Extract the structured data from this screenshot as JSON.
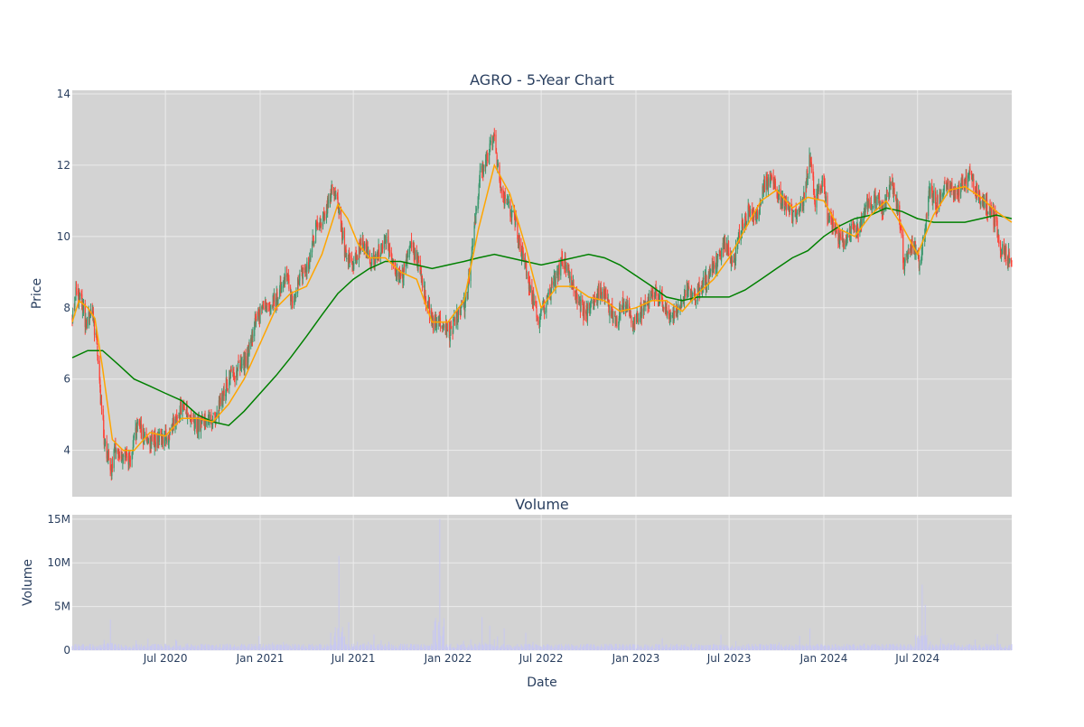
{
  "colors": {
    "plot_bg": "#d3d3d3",
    "grid": "#ebebeb",
    "up": "#3d9970",
    "down": "#ff4136",
    "ma_fast": "#ffa500",
    "ma_slow": "#008000",
    "volume": "#c8c8f0",
    "text": "#2a3f5f"
  },
  "chart_data": [
    {
      "type": "candlestick",
      "title": "AGRO - 5-Year Chart",
      "ylabel": "Price",
      "ylim": [
        2.7,
        14.1
      ],
      "yticks": [
        4,
        6,
        8,
        10,
        12,
        14
      ],
      "xlim": [
        "2020-01-02",
        "2024-12-31"
      ],
      "grid": true,
      "legend": "none",
      "series": [
        {
          "type": "candlestick",
          "colors": {
            "up": "#3d9970",
            "down": "#ff4136"
          }
        },
        {
          "type": "line",
          "color": "#ffa500"
        },
        {
          "type": "line",
          "color": "#008000"
        }
      ],
      "close_path": [
        [
          "2020-01-02",
          7.7
        ],
        [
          "2020-01-09",
          8.4
        ],
        [
          "2020-01-20",
          8.2
        ],
        [
          "2020-01-28",
          7.5
        ],
        [
          "2020-02-07",
          8.1
        ],
        [
          "2020-02-20",
          6.8
        ],
        [
          "2020-02-26",
          5.4
        ],
        [
          "2020-03-05",
          4.2
        ],
        [
          "2020-03-18",
          3.5
        ],
        [
          "2020-03-26",
          4.1
        ],
        [
          "2020-04-10",
          3.8
        ],
        [
          "2020-04-22",
          3.8
        ],
        [
          "2020-05-08",
          4.7
        ],
        [
          "2020-05-20",
          4.4
        ],
        [
          "2020-06-05",
          4.2
        ],
        [
          "2020-06-20",
          4.4
        ],
        [
          "2020-07-05",
          4.3
        ],
        [
          "2020-07-20",
          4.9
        ],
        [
          "2020-08-05",
          5.3
        ],
        [
          "2020-08-20",
          4.8
        ],
        [
          "2020-09-05",
          4.7
        ],
        [
          "2020-09-20",
          4.9
        ],
        [
          "2020-10-05",
          4.8
        ],
        [
          "2020-10-20",
          5.6
        ],
        [
          "2020-11-05",
          6.1
        ],
        [
          "2020-11-20",
          6.3
        ],
        [
          "2020-12-05",
          6.4
        ],
        [
          "2020-12-20",
          7.5
        ],
        [
          "2021-01-05",
          8.0
        ],
        [
          "2021-01-20",
          8.1
        ],
        [
          "2021-02-05",
          8.3
        ],
        [
          "2021-02-20",
          9.1
        ],
        [
          "2021-03-05",
          8.1
        ],
        [
          "2021-03-20",
          9.0
        ],
        [
          "2021-04-05",
          9.1
        ],
        [
          "2021-04-20",
          10.4
        ],
        [
          "2021-05-05",
          10.5
        ],
        [
          "2021-05-20",
          11.3
        ],
        [
          "2021-06-01",
          11.0
        ],
        [
          "2021-06-15",
          9.5
        ],
        [
          "2021-07-01",
          9.3
        ],
        [
          "2021-07-20",
          9.8
        ],
        [
          "2021-08-05",
          9.2
        ],
        [
          "2021-08-20",
          9.6
        ],
        [
          "2021-09-05",
          9.9
        ],
        [
          "2021-09-20",
          9.0
        ],
        [
          "2021-10-05",
          8.9
        ],
        [
          "2021-10-20",
          9.7
        ],
        [
          "2021-11-05",
          9.2
        ],
        [
          "2021-11-20",
          8.2
        ],
        [
          "2021-12-05",
          7.5
        ],
        [
          "2021-12-20",
          7.6
        ],
        [
          "2022-01-05",
          7.3
        ],
        [
          "2022-01-20",
          7.8
        ],
        [
          "2022-02-05",
          8.2
        ],
        [
          "2022-02-20",
          10.0
        ],
        [
          "2022-03-05",
          11.8
        ],
        [
          "2022-03-20",
          12.2
        ],
        [
          "2022-04-01",
          13.0
        ],
        [
          "2022-04-10",
          11.5
        ],
        [
          "2022-04-25",
          10.9
        ],
        [
          "2022-05-10",
          10.5
        ],
        [
          "2022-05-25",
          9.5
        ],
        [
          "2022-06-10",
          8.5
        ],
        [
          "2022-06-25",
          7.7
        ],
        [
          "2022-07-10",
          8.1
        ],
        [
          "2022-07-25",
          8.7
        ],
        [
          "2022-08-10",
          9.3
        ],
        [
          "2022-08-25",
          9.0
        ],
        [
          "2022-09-10",
          8.2
        ],
        [
          "2022-09-25",
          7.8
        ],
        [
          "2022-10-10",
          8.3
        ],
        [
          "2022-10-25",
          8.5
        ],
        [
          "2022-11-10",
          8.0
        ],
        [
          "2022-11-25",
          7.6
        ],
        [
          "2022-12-10",
          8.2
        ],
        [
          "2022-12-25",
          7.5
        ],
        [
          "2023-01-10",
          7.9
        ],
        [
          "2023-01-25",
          8.2
        ],
        [
          "2023-02-10",
          8.4
        ],
        [
          "2023-02-25",
          8.0
        ],
        [
          "2023-03-10",
          7.6
        ],
        [
          "2023-03-25",
          7.9
        ],
        [
          "2023-04-10",
          8.6
        ],
        [
          "2023-04-25",
          8.3
        ],
        [
          "2023-05-10",
          8.6
        ],
        [
          "2023-05-25",
          8.9
        ],
        [
          "2023-06-10",
          9.4
        ],
        [
          "2023-06-25",
          9.8
        ],
        [
          "2023-07-10",
          9.3
        ],
        [
          "2023-07-25",
          10.2
        ],
        [
          "2023-08-10",
          10.8
        ],
        [
          "2023-08-25",
          10.6
        ],
        [
          "2023-09-10",
          11.6
        ],
        [
          "2023-09-25",
          11.5
        ],
        [
          "2023-10-10",
          11.1
        ],
        [
          "2023-10-25",
          10.8
        ],
        [
          "2023-11-10",
          10.5
        ],
        [
          "2023-11-25",
          11.2
        ],
        [
          "2023-12-05",
          12.3
        ],
        [
          "2023-12-15",
          11.0
        ],
        [
          "2023-12-30",
          11.6
        ],
        [
          "2024-01-10",
          10.5
        ],
        [
          "2024-01-25",
          10.1
        ],
        [
          "2024-02-10",
          9.8
        ],
        [
          "2024-02-25",
          10.2
        ],
        [
          "2024-03-10",
          10.1
        ],
        [
          "2024-03-25",
          10.9
        ],
        [
          "2024-04-10",
          11.0
        ],
        [
          "2024-04-25",
          10.8
        ],
        [
          "2024-05-10",
          11.5
        ],
        [
          "2024-05-25",
          10.7
        ],
        [
          "2024-06-05",
          9.2
        ],
        [
          "2024-06-20",
          9.8
        ],
        [
          "2024-07-05",
          9.3
        ],
        [
          "2024-07-15",
          10.2
        ],
        [
          "2024-07-25",
          11.3
        ],
        [
          "2024-08-10",
          10.9
        ],
        [
          "2024-08-25",
          11.5
        ],
        [
          "2024-09-10",
          11.2
        ],
        [
          "2024-09-25",
          11.4
        ],
        [
          "2024-10-10",
          11.7
        ],
        [
          "2024-10-25",
          11.2
        ],
        [
          "2024-11-10",
          10.9
        ],
        [
          "2024-11-25",
          10.6
        ],
        [
          "2024-12-10",
          9.7
        ],
        [
          "2024-12-31",
          9.3
        ]
      ],
      "ma_fast": [
        [
          "2020-01-02",
          7.6
        ],
        [
          "2020-01-15",
          8.2
        ],
        [
          "2020-02-01",
          8.0
        ],
        [
          "2020-02-15",
          7.7
        ],
        [
          "2020-03-01",
          6.3
        ],
        [
          "2020-03-20",
          4.3
        ],
        [
          "2020-04-10",
          4.0
        ],
        [
          "2020-05-01",
          4.0
        ],
        [
          "2020-06-01",
          4.5
        ],
        [
          "2020-07-01",
          4.4
        ],
        [
          "2020-08-01",
          4.9
        ],
        [
          "2020-09-01",
          4.9
        ],
        [
          "2020-10-01",
          4.8
        ],
        [
          "2020-11-01",
          5.3
        ],
        [
          "2020-12-01",
          6.0
        ],
        [
          "2021-01-01",
          7.0
        ],
        [
          "2021-02-01",
          8.0
        ],
        [
          "2021-03-01",
          8.4
        ],
        [
          "2021-04-01",
          8.6
        ],
        [
          "2021-05-01",
          9.5
        ],
        [
          "2021-06-01",
          10.9
        ],
        [
          "2021-06-20",
          10.5
        ],
        [
          "2021-07-10",
          9.8
        ],
        [
          "2021-08-01",
          9.4
        ],
        [
          "2021-09-01",
          9.4
        ],
        [
          "2021-10-01",
          9.0
        ],
        [
          "2021-11-01",
          8.8
        ],
        [
          "2021-12-01",
          7.6
        ],
        [
          "2022-01-01",
          7.6
        ],
        [
          "2022-02-01",
          8.2
        ],
        [
          "2022-03-01",
          10.2
        ],
        [
          "2022-04-01",
          12.0
        ],
        [
          "2022-05-01",
          11.2
        ],
        [
          "2022-06-01",
          9.7
        ],
        [
          "2022-07-01",
          8.0
        ],
        [
          "2022-08-01",
          8.6
        ],
        [
          "2022-09-01",
          8.6
        ],
        [
          "2022-10-01",
          8.3
        ],
        [
          "2022-11-01",
          8.2
        ],
        [
          "2022-12-01",
          7.9
        ],
        [
          "2023-01-01",
          8.0
        ],
        [
          "2023-02-01",
          8.2
        ],
        [
          "2023-03-01",
          8.2
        ],
        [
          "2023-04-01",
          7.9
        ],
        [
          "2023-05-01",
          8.4
        ],
        [
          "2023-06-01",
          8.8
        ],
        [
          "2023-07-01",
          9.4
        ],
        [
          "2023-08-01",
          10.2
        ],
        [
          "2023-09-01",
          11.0
        ],
        [
          "2023-10-01",
          11.3
        ],
        [
          "2023-11-01",
          10.8
        ],
        [
          "2023-12-01",
          11.1
        ],
        [
          "2024-01-01",
          11.0
        ],
        [
          "2024-02-01",
          10.2
        ],
        [
          "2024-03-01",
          10.0
        ],
        [
          "2024-04-01",
          10.6
        ],
        [
          "2024-05-01",
          11.0
        ],
        [
          "2024-06-01",
          10.3
        ],
        [
          "2024-07-01",
          9.5
        ],
        [
          "2024-08-01",
          10.6
        ],
        [
          "2024-09-01",
          11.3
        ],
        [
          "2024-10-01",
          11.4
        ],
        [
          "2024-11-01",
          11.1
        ],
        [
          "2024-12-01",
          10.7
        ],
        [
          "2024-12-31",
          10.4
        ]
      ],
      "ma_slow": [
        [
          "2020-01-02",
          6.6
        ],
        [
          "2020-02-01",
          6.8
        ],
        [
          "2020-03-01",
          6.8
        ],
        [
          "2020-04-01",
          6.4
        ],
        [
          "2020-05-01",
          6.0
        ],
        [
          "2020-06-01",
          5.8
        ],
        [
          "2020-07-01",
          5.6
        ],
        [
          "2020-08-01",
          5.4
        ],
        [
          "2020-09-01",
          5.0
        ],
        [
          "2020-10-01",
          4.8
        ],
        [
          "2020-11-01",
          4.7
        ],
        [
          "2020-12-01",
          5.1
        ],
        [
          "2021-01-01",
          5.6
        ],
        [
          "2021-02-01",
          6.1
        ],
        [
          "2021-03-01",
          6.6
        ],
        [
          "2021-04-01",
          7.2
        ],
        [
          "2021-05-01",
          7.8
        ],
        [
          "2021-06-01",
          8.4
        ],
        [
          "2021-07-01",
          8.8
        ],
        [
          "2021-08-01",
          9.1
        ],
        [
          "2021-09-01",
          9.3
        ],
        [
          "2021-10-01",
          9.3
        ],
        [
          "2021-11-01",
          9.2
        ],
        [
          "2021-12-01",
          9.1
        ],
        [
          "2022-01-01",
          9.2
        ],
        [
          "2022-02-01",
          9.3
        ],
        [
          "2022-03-01",
          9.4
        ],
        [
          "2022-04-01",
          9.5
        ],
        [
          "2022-05-01",
          9.4
        ],
        [
          "2022-06-01",
          9.3
        ],
        [
          "2022-07-01",
          9.2
        ],
        [
          "2022-08-01",
          9.3
        ],
        [
          "2022-09-01",
          9.4
        ],
        [
          "2022-10-01",
          9.5
        ],
        [
          "2022-11-01",
          9.4
        ],
        [
          "2022-12-01",
          9.2
        ],
        [
          "2023-01-01",
          8.9
        ],
        [
          "2023-02-01",
          8.6
        ],
        [
          "2023-03-01",
          8.3
        ],
        [
          "2023-04-01",
          8.2
        ],
        [
          "2023-05-01",
          8.3
        ],
        [
          "2023-06-01",
          8.3
        ],
        [
          "2023-07-01",
          8.3
        ],
        [
          "2023-08-01",
          8.5
        ],
        [
          "2023-09-01",
          8.8
        ],
        [
          "2023-10-01",
          9.1
        ],
        [
          "2023-11-01",
          9.4
        ],
        [
          "2023-12-01",
          9.6
        ],
        [
          "2024-01-01",
          10.0
        ],
        [
          "2024-02-01",
          10.3
        ],
        [
          "2024-03-01",
          10.5
        ],
        [
          "2024-04-01",
          10.6
        ],
        [
          "2024-05-01",
          10.8
        ],
        [
          "2024-06-01",
          10.7
        ],
        [
          "2024-07-01",
          10.5
        ],
        [
          "2024-08-01",
          10.4
        ],
        [
          "2024-09-01",
          10.4
        ],
        [
          "2024-10-01",
          10.4
        ],
        [
          "2024-11-01",
          10.5
        ],
        [
          "2024-12-01",
          10.6
        ],
        [
          "2024-12-31",
          10.5
        ]
      ]
    },
    {
      "type": "bar",
      "title": "Volume",
      "xlabel": "Date",
      "ylabel": "Volume",
      "ylim": [
        0,
        15500000
      ],
      "yticks": [
        0,
        5000000,
        10000000,
        15000000
      ],
      "ytick_labels": [
        "0",
        "5M",
        "10M",
        "15M"
      ],
      "xticks": [
        "2020-07-01",
        "2021-01-01",
        "2021-07-01",
        "2022-01-01",
        "2022-07-01",
        "2023-01-01",
        "2023-07-01",
        "2024-01-01",
        "2024-07-01"
      ],
      "xtick_labels": [
        "Jul 2020",
        "Jan 2021",
        "Jul 2021",
        "Jan 2022",
        "Jul 2022",
        "Jan 2023",
        "Jul 2023",
        "Jan 2024",
        "Jul 2024"
      ],
      "color": "#c8c8f0",
      "base_volume": 500000,
      "spikes": [
        [
          "2020-03-16",
          3500000
        ],
        [
          "2021-05-18",
          2000000
        ],
        [
          "2021-06-03",
          10800000
        ],
        [
          "2021-06-22",
          3200000
        ],
        [
          "2021-12-03",
          2300000
        ],
        [
          "2021-12-16",
          15000000
        ],
        [
          "2022-03-08",
          3800000
        ],
        [
          "2022-03-23",
          2800000
        ],
        [
          "2022-04-20",
          2500000
        ],
        [
          "2022-06-01",
          2000000
        ],
        [
          "2023-06-15",
          1800000
        ],
        [
          "2023-11-25",
          2200000
        ],
        [
          "2023-12-05",
          2500000
        ],
        [
          "2024-05-25",
          1600000
        ],
        [
          "2024-07-10",
          7500000
        ],
        [
          "2024-07-16",
          5200000
        ],
        [
          "2024-10-05",
          1500000
        ]
      ]
    }
  ]
}
